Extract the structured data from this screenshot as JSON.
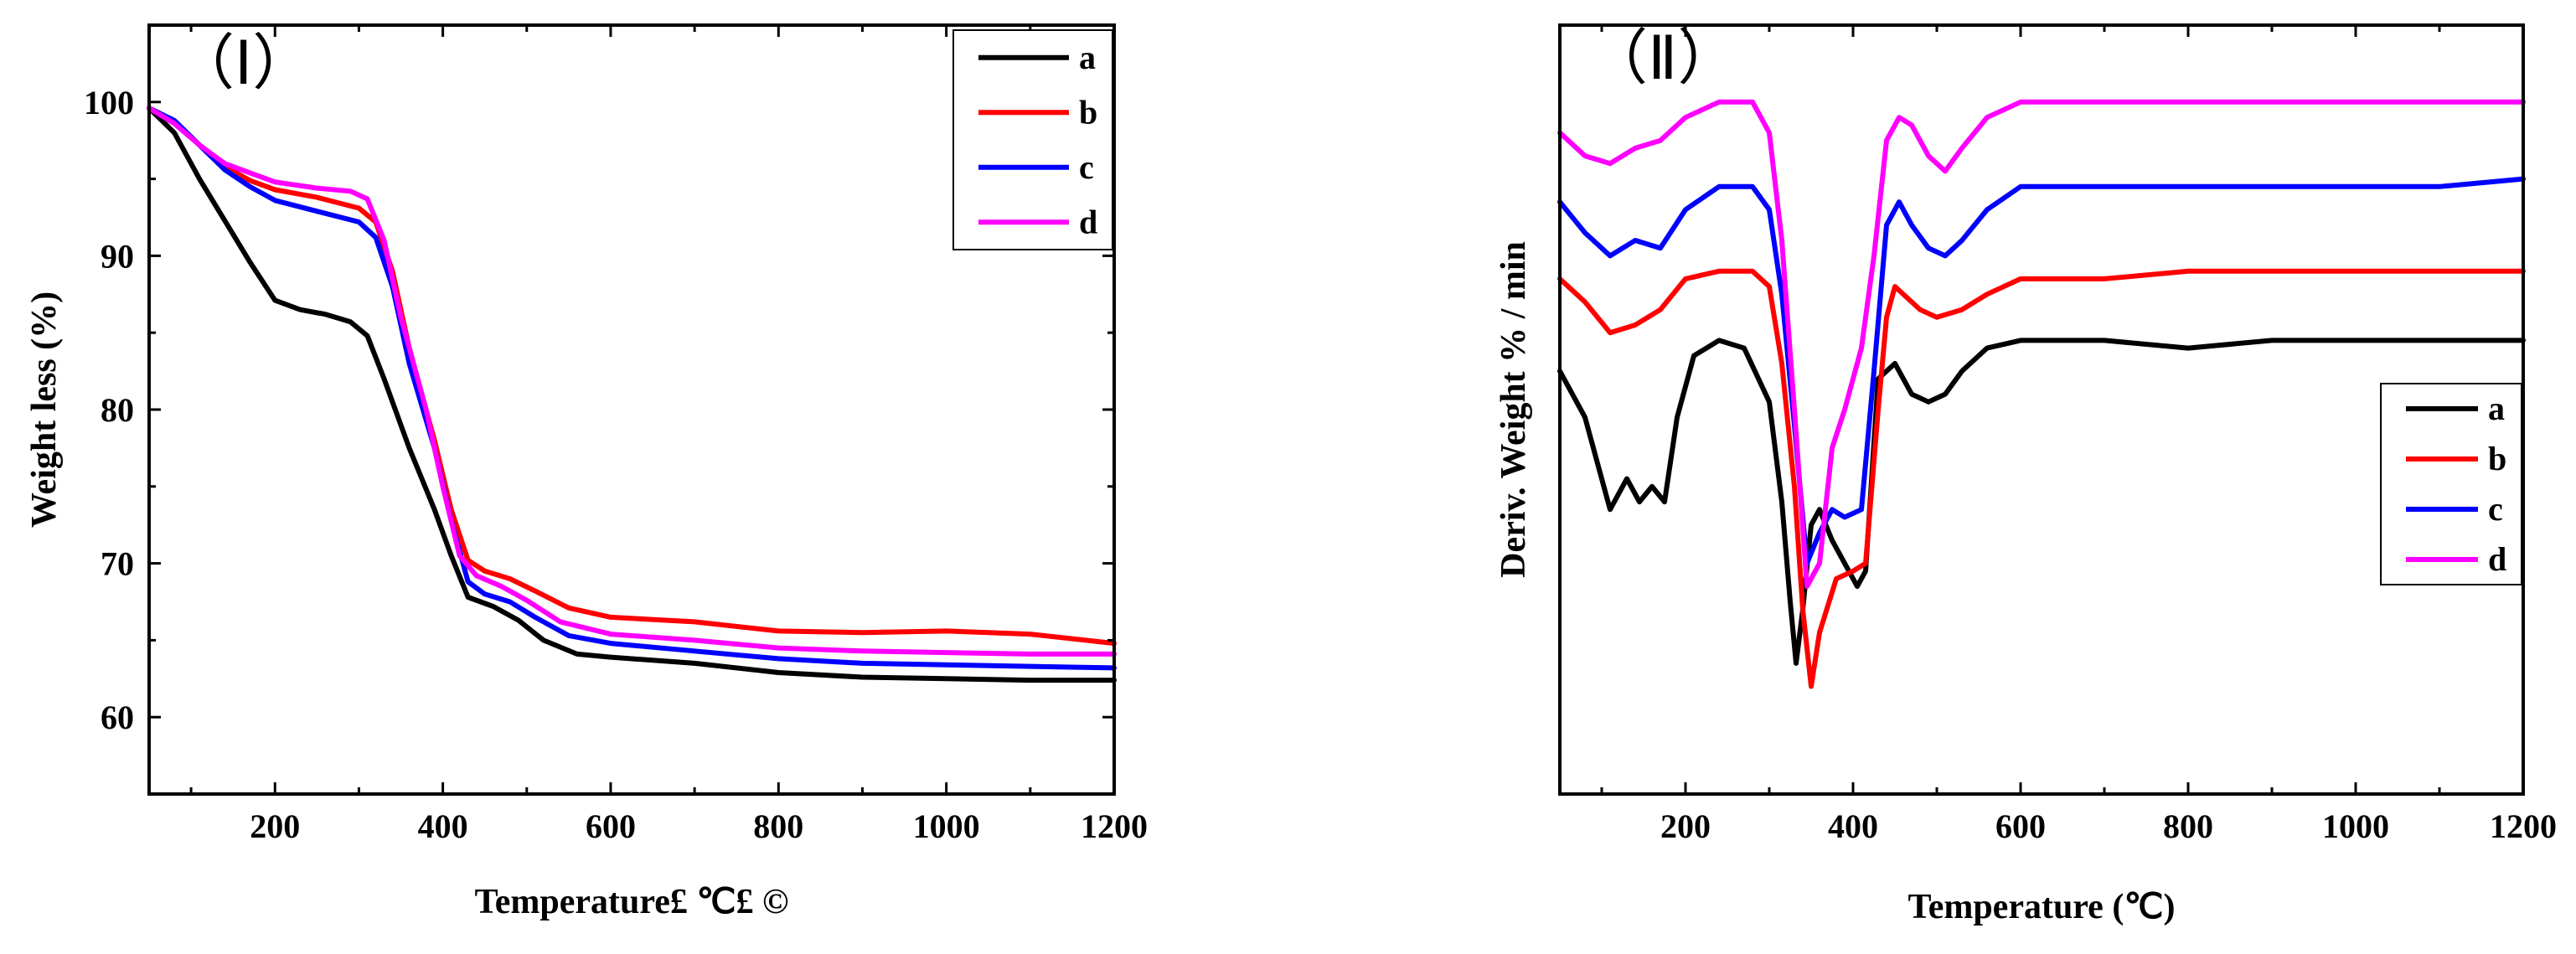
{
  "chart_data": [
    {
      "type": "line",
      "panel_label": "（Ⅰ）",
      "xlabel": "Temperature£ ℃£ ©",
      "ylabel": "Weight less (%)",
      "xlim": [
        50,
        1200
      ],
      "ylim": [
        55,
        105
      ],
      "xticks": [
        200,
        400,
        600,
        800,
        1000,
        1200
      ],
      "yticks": [
        60,
        70,
        80,
        90,
        100
      ],
      "legend_position": "top-right",
      "series": [
        {
          "name": "a",
          "color": "#000000",
          "x": [
            50,
            80,
            110,
            140,
            170,
            200,
            230,
            260,
            290,
            310,
            330,
            360,
            390,
            410,
            430,
            460,
            490,
            520,
            560,
            600,
            700,
            800,
            900,
            1000,
            1100,
            1200
          ],
          "y": [
            99.6,
            98.0,
            95.0,
            92.3,
            89.6,
            87.1,
            86.5,
            86.2,
            85.7,
            84.8,
            82.0,
            77.5,
            73.5,
            70.5,
            67.8,
            67.2,
            66.3,
            65.0,
            64.1,
            63.9,
            63.5,
            62.9,
            62.6,
            62.5,
            62.4,
            62.4
          ]
        },
        {
          "name": "b",
          "color": "#ff0000",
          "x": [
            50,
            80,
            110,
            140,
            170,
            200,
            250,
            300,
            320,
            340,
            360,
            390,
            410,
            430,
            450,
            480,
            510,
            550,
            600,
            700,
            800,
            900,
            1000,
            1100,
            1200
          ],
          "y": [
            99.6,
            98.7,
            97.2,
            95.8,
            94.9,
            94.3,
            93.8,
            93.1,
            92.2,
            89.0,
            84.0,
            78.0,
            73.5,
            70.2,
            69.5,
            69.0,
            68.2,
            67.1,
            66.5,
            66.2,
            65.6,
            65.5,
            65.6,
            65.4,
            64.8
          ]
        },
        {
          "name": "c",
          "color": "#0000ff",
          "x": [
            50,
            80,
            110,
            140,
            170,
            200,
            250,
            300,
            320,
            340,
            360,
            390,
            410,
            430,
            450,
            480,
            510,
            550,
            600,
            700,
            800,
            900,
            1000,
            1100,
            1200
          ],
          "y": [
            99.6,
            98.8,
            97.2,
            95.6,
            94.5,
            93.6,
            92.9,
            92.2,
            91.2,
            88.0,
            83.0,
            77.5,
            72.8,
            68.8,
            68.0,
            67.5,
            66.5,
            65.3,
            64.8,
            64.3,
            63.8,
            63.5,
            63.4,
            63.3,
            63.2
          ]
        },
        {
          "name": "d",
          "color": "#ff00ff",
          "x": [
            50,
            80,
            110,
            140,
            170,
            200,
            250,
            290,
            310,
            330,
            350,
            380,
            400,
            420,
            440,
            470,
            500,
            540,
            600,
            700,
            800,
            900,
            1000,
            1100,
            1200
          ],
          "y": [
            99.6,
            98.6,
            97.2,
            96.0,
            95.4,
            94.8,
            94.4,
            94.2,
            93.7,
            91.0,
            86.0,
            80.0,
            75.0,
            70.5,
            69.2,
            68.5,
            67.6,
            66.2,
            65.4,
            65.0,
            64.5,
            64.3,
            64.2,
            64.1,
            64.1
          ]
        }
      ]
    },
    {
      "type": "line",
      "panel_label": "（Ⅱ）",
      "xlabel": "Temperature (℃)",
      "ylabel": "Deriv. Weight  % / min",
      "xlim": [
        50,
        1200
      ],
      "ylim": [
        0,
        100
      ],
      "xticks": [
        200,
        400,
        600,
        800,
        1000,
        1200
      ],
      "yticks": [],
      "legend_position": "right",
      "series": [
        {
          "name": "a",
          "color": "#000000",
          "x": [
            50,
            80,
            110,
            130,
            145,
            160,
            175,
            190,
            210,
            240,
            270,
            300,
            315,
            325,
            332,
            340,
            350,
            360,
            375,
            390,
            405,
            415,
            430,
            450,
            470,
            490,
            510,
            530,
            560,
            600,
            700,
            800,
            900,
            1000,
            1100,
            1200
          ],
          "y": [
            55,
            49,
            37,
            41,
            38,
            40,
            38,
            49,
            57,
            59,
            58,
            51,
            38,
            25,
            17,
            24,
            35,
            37,
            33,
            30,
            27,
            29,
            54,
            56,
            52,
            51,
            52,
            55,
            58,
            59,
            59,
            58,
            59,
            59,
            59,
            59
          ]
        },
        {
          "name": "b",
          "color": "#ff0000",
          "x": [
            50,
            80,
            110,
            140,
            170,
            200,
            240,
            280,
            300,
            315,
            330,
            340,
            350,
            360,
            380,
            400,
            415,
            430,
            440,
            450,
            460,
            480,
            500,
            530,
            560,
            600,
            700,
            800,
            900,
            1000,
            1100,
            1200
          ],
          "y": [
            67,
            64,
            60,
            61,
            63,
            67,
            68,
            68,
            66,
            56,
            40,
            24,
            14,
            21,
            28,
            29,
            30,
            50,
            62,
            66,
            65,
            63,
            62,
            63,
            65,
            67,
            67,
            68,
            68,
            68,
            68,
            68
          ]
        },
        {
          "name": "c",
          "color": "#0000ff",
          "x": [
            50,
            80,
            110,
            140,
            170,
            200,
            240,
            280,
            300,
            315,
            330,
            345,
            360,
            375,
            390,
            410,
            425,
            440,
            455,
            470,
            490,
            510,
            530,
            560,
            600,
            700,
            800,
            900,
            1000,
            1100,
            1200
          ],
          "y": [
            77,
            73,
            70,
            72,
            71,
            76,
            79,
            79,
            76,
            65,
            48,
            30,
            34,
            37,
            36,
            37,
            55,
            74,
            77,
            74,
            71,
            70,
            72,
            76,
            79,
            79,
            79,
            79,
            79,
            79,
            80
          ]
        },
        {
          "name": "d",
          "color": "#ff00ff",
          "x": [
            50,
            80,
            110,
            140,
            170,
            200,
            240,
            280,
            300,
            315,
            330,
            345,
            360,
            375,
            390,
            410,
            425,
            440,
            455,
            470,
            490,
            510,
            530,
            560,
            600,
            700,
            800,
            900,
            1000,
            1100,
            1200
          ],
          "y": [
            86,
            83,
            82,
            84,
            85,
            88,
            90,
            90,
            86,
            72,
            50,
            27,
            30,
            45,
            50,
            58,
            70,
            85,
            88,
            87,
            83,
            81,
            84,
            88,
            90,
            90,
            90,
            90,
            90,
            90,
            90
          ]
        }
      ]
    }
  ]
}
